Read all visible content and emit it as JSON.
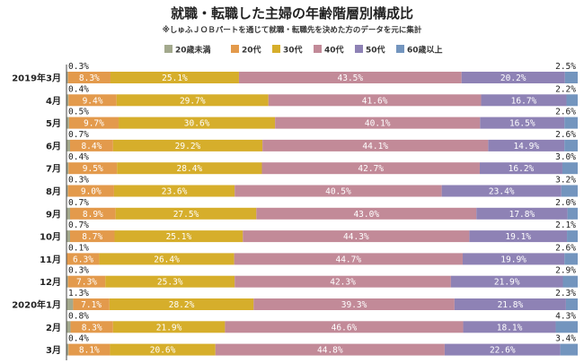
{
  "chart_data": {
    "type": "bar",
    "orientation": "horizontal",
    "stacked": true,
    "title": "就職・転職した主婦の年齢階層別構成比",
    "subtitle": "※しゅふＪＯＢパートを通じて就職・転職先を決めた方のデータを元に集計",
    "legend_position": "top",
    "xlim": [
      0,
      100
    ],
    "categories": [
      "2019年3月",
      "4月",
      "5月",
      "6月",
      "7月",
      "8月",
      "9月",
      "10月",
      "11月",
      "12月",
      "2020年1月",
      "2月",
      "3月"
    ],
    "series": [
      {
        "name": "20歳未満",
        "color": "#a3a98d",
        "values": [
          0.3,
          0.4,
          0.5,
          0.7,
          0.4,
          0.3,
          0.7,
          0.7,
          0.1,
          0.3,
          1.3,
          0.8,
          0.4
        ]
      },
      {
        "name": "20代",
        "color": "#e39a4c",
        "values": [
          8.3,
          9.4,
          9.7,
          8.4,
          9.5,
          9.0,
          8.9,
          8.7,
          6.3,
          7.3,
          7.1,
          8.3,
          8.1
        ]
      },
      {
        "name": "30代",
        "color": "#d6ae2b",
        "values": [
          25.1,
          29.7,
          30.6,
          29.2,
          28.4,
          23.6,
          27.5,
          25.1,
          26.4,
          25.3,
          28.2,
          21.9,
          20.6
        ]
      },
      {
        "name": "40代",
        "color": "#c28a98",
        "values": [
          43.5,
          41.6,
          40.1,
          44.1,
          42.7,
          40.5,
          43.0,
          44.3,
          44.7,
          42.3,
          39.3,
          46.6,
          44.8
        ]
      },
      {
        "name": "50代",
        "color": "#8e82b5",
        "values": [
          20.2,
          16.7,
          16.5,
          14.9,
          16.2,
          23.4,
          17.8,
          19.1,
          19.9,
          21.9,
          21.8,
          18.1,
          22.6
        ]
      },
      {
        "name": "60歳以上",
        "color": "#7395be",
        "values": [
          2.5,
          2.2,
          2.6,
          2.6,
          3.0,
          3.2,
          2.0,
          2.1,
          2.6,
          2.9,
          2.3,
          4.3,
          3.4
        ]
      }
    ]
  }
}
